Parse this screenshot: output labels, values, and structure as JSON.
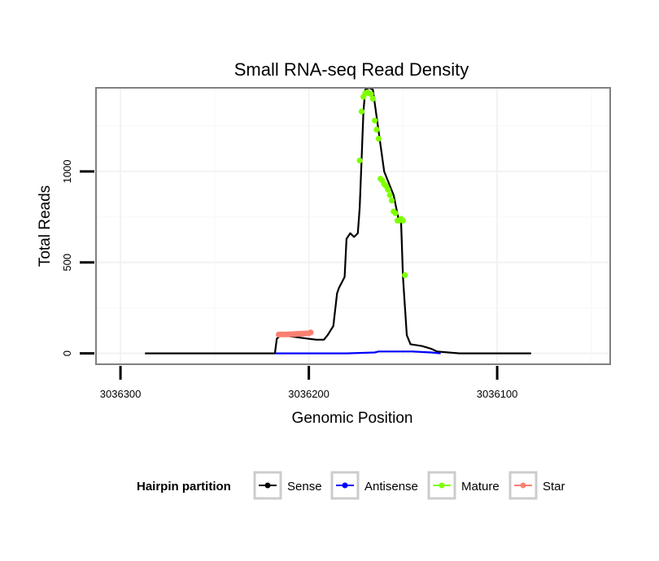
{
  "chart_data": {
    "type": "line",
    "title": "Small RNA-seq Read Density",
    "xlabel": "Genomic Position",
    "ylabel": "Total Reads",
    "x_reversed": true,
    "xlim": [
      3036313,
      3036040
    ],
    "ylim": [
      -60,
      1460
    ],
    "x_ticks": [
      3036300,
      3036200,
      3036100
    ],
    "x_tick_labels": [
      "3036300",
      "3036200",
      "3036100"
    ],
    "y_ticks": [
      0,
      500,
      1000
    ],
    "y_tick_labels": [
      "0",
      "500",
      "1000"
    ],
    "grid": true,
    "legend": {
      "title": "Hairpin partition",
      "position": "bottom",
      "entries": [
        "Sense",
        "Antisense",
        "Mature",
        "Star"
      ]
    },
    "series": [
      {
        "name": "Sense",
        "color": "#000000",
        "style": "line",
        "x": [
          3036287,
          3036250,
          3036218,
          3036217,
          3036215,
          3036200,
          3036196,
          3036192,
          3036190,
          3036187,
          3036185,
          3036184,
          3036182,
          3036181,
          3036180,
          3036178,
          3036176,
          3036174,
          3036173,
          3036172,
          3036171,
          3036170,
          3036168,
          3036166,
          3036160,
          3036155,
          3036152,
          3036151,
          3036150,
          3036148,
          3036146,
          3036140,
          3036135,
          3036132,
          3036120,
          3036100,
          3036082
        ],
        "y": [
          0,
          0,
          0,
          80,
          100,
          80,
          75,
          75,
          100,
          150,
          330,
          360,
          400,
          420,
          630,
          660,
          640,
          660,
          800,
          1060,
          1330,
          1450,
          1460,
          1450,
          1000,
          870,
          720,
          720,
          420,
          100,
          50,
          40,
          25,
          10,
          0,
          0,
          0
        ]
      },
      {
        "name": "Antisense",
        "color": "#0000ff",
        "style": "line",
        "x": [
          3036218,
          3036190,
          3036180,
          3036165,
          3036163,
          3036145,
          3036135,
          3036130
        ],
        "y": [
          0,
          0,
          0,
          5,
          10,
          10,
          5,
          0
        ]
      },
      {
        "name": "Mature",
        "color": "#7fff00",
        "style": "points",
        "x": [
          3036173,
          3036172,
          3036171,
          3036170,
          3036169,
          3036168,
          3036167,
          3036166,
          3036165,
          3036164,
          3036163,
          3036162,
          3036161,
          3036160,
          3036159,
          3036158,
          3036157,
          3036156,
          3036155,
          3036154,
          3036153,
          3036152,
          3036151,
          3036150,
          3036149
        ],
        "y": [
          1060,
          1330,
          1410,
          1430,
          1435,
          1430,
          1425,
          1400,
          1280,
          1230,
          1180,
          960,
          950,
          930,
          920,
          900,
          870,
          840,
          780,
          770,
          730,
          730,
          740,
          730,
          430
        ]
      },
      {
        "name": "Star",
        "color": "#fa8072",
        "style": "line-points",
        "x": [
          3036216,
          3036215,
          3036214,
          3036213,
          3036212,
          3036211,
          3036210,
          3036209,
          3036208,
          3036207,
          3036206,
          3036205,
          3036204,
          3036203,
          3036202,
          3036201,
          3036200,
          3036199
        ],
        "y": [
          103,
          104,
          104,
          104,
          104,
          105,
          105,
          105,
          106,
          106,
          107,
          107,
          108,
          108,
          109,
          110,
          110,
          115
        ]
      }
    ]
  }
}
